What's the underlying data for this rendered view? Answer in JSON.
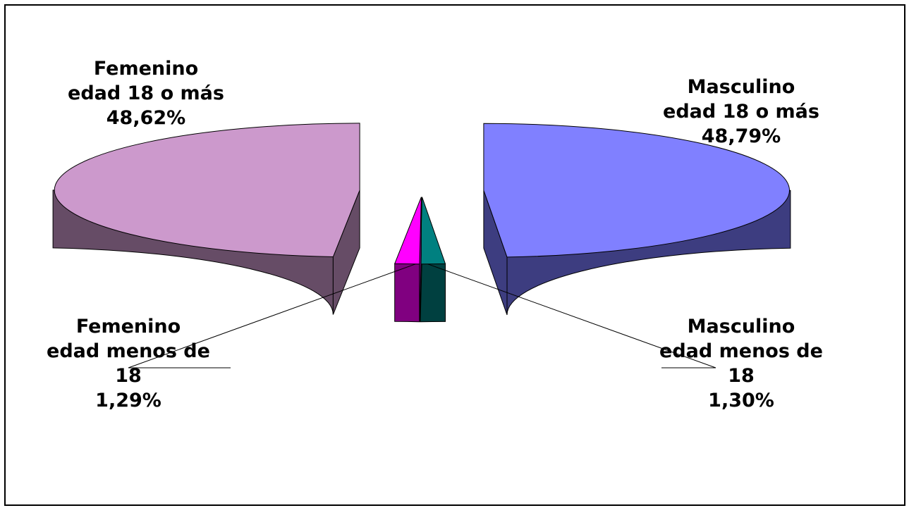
{
  "chart_data": {
    "type": "pie",
    "three_d": true,
    "exploded": true,
    "legend": "none",
    "slices": [
      {
        "category": "Masculino edad 18 o más",
        "value": 48.79,
        "display": "48,79%",
        "label_lines": [
          "Masculino",
          "edad 18 o más",
          "48,79%"
        ],
        "top_color": "#8080ff",
        "side_color": "#3d3d80"
      },
      {
        "category": "Masculino edad menos de 18",
        "value": 1.3,
        "display": "1,30%",
        "label_lines": [
          "Masculino",
          "edad menos de",
          "18",
          "1,30%"
        ],
        "top_color": "#008080",
        "side_color": "#004040"
      },
      {
        "category": "Femenino edad menos de 18",
        "value": 1.29,
        "display": "1,29%",
        "label_lines": [
          "Femenino",
          "edad menos de",
          "18",
          "1,29%"
        ],
        "top_color": "#ff00ff",
        "side_color": "#800080"
      },
      {
        "category": "Femenino edad 18 o más",
        "value": 48.62,
        "display": "48,62%",
        "label_lines": [
          "Femenino",
          "edad 18 o más",
          "48,62%"
        ],
        "top_color": "#cc99cc",
        "side_color": "#664c66"
      }
    ]
  }
}
